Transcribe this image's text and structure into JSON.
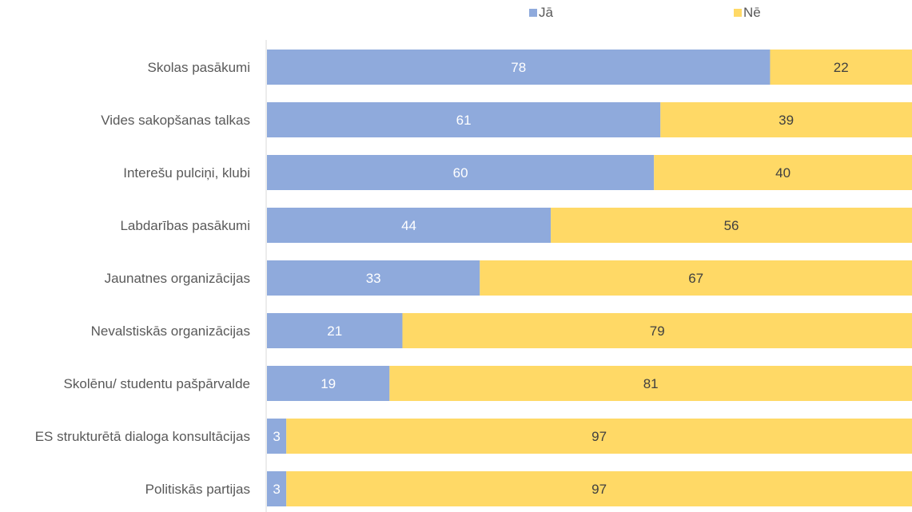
{
  "chart_data": {
    "type": "bar",
    "orientation": "horizontal",
    "stacked": true,
    "title": "",
    "xlabel": "",
    "ylabel": "",
    "xlim": [
      0,
      100
    ],
    "grid": false,
    "legend_position": "top",
    "categories": [
      "Skolas pasākumi",
      "Vides sakopšanas talkas",
      "Interešu pulciņi, klubi",
      "Labdarības pasākumi",
      "Jaunatnes organizācijas",
      "Nevalstiskās organizācijas",
      "Skolēnu/ studentu pašpārvalde",
      "ES strukturētā dialoga konsultācijas",
      "Politiskās partijas"
    ],
    "series": [
      {
        "name": "Jā",
        "color": "#8FAADC",
        "label_color": "#ffffff",
        "values": [
          78,
          61,
          60,
          44,
          33,
          21,
          19,
          3,
          3
        ]
      },
      {
        "name": "Nē",
        "color": "#FFD966",
        "label_color": "#404040",
        "values": [
          22,
          39,
          40,
          56,
          67,
          79,
          81,
          97,
          97
        ]
      }
    ]
  }
}
